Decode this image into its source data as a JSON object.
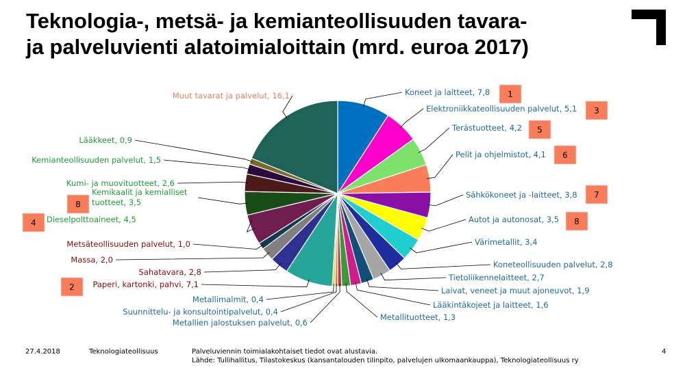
{
  "title_line1": "Teknologia-, metsä- ja kemianteollisuuden tavara-",
  "title_line2": "ja palveluvienti alatoimialoittain (mrd. euroa 2017)",
  "footer": {
    "date": "27.4.2018",
    "org": "Teknologiateollisuus",
    "note": "Palveluviennin toimialakohtaiset tiedot ovat alustavia.",
    "source": "Lähde: Tullihallitus, Tilastokeskus (kansantalouden tilinpito, palvelujen ulkomaankauppa), Teknologiateollisuus ry",
    "page_number": "4"
  },
  "chart_data": {
    "type": "pie",
    "title": "Teknologia-, metsä- ja kemianteollisuuden tavara- ja palveluvienti alatoimialoittain (mrd. euroa 2017)",
    "slices": [
      {
        "label": "Koneet ja laitteet",
        "display": "Koneet ja laitteet, 7,8",
        "value": 7.8,
        "color": "#0070C0",
        "label_color": "#1F6A9A",
        "rank": "1"
      },
      {
        "label": "Elektroniikkateollisuuden palvelut",
        "display": "Elektroniikkateollisuuden palvelut, 5,1",
        "value": 5.1,
        "color": "#FF00CC",
        "label_color": "#1F6A9A",
        "rank": "3"
      },
      {
        "label": "Terästuotteet",
        "display": "Terästuotteet, 4,2",
        "value": 4.2,
        "color": "#7CE26B",
        "label_color": "#1F6A9A",
        "rank": "5"
      },
      {
        "label": "Pelit ja ohjelmistot",
        "display": "Pelit ja ohjelmistot, 4,1",
        "value": 4.1,
        "color": "#FA7D5A",
        "label_color": "#1F6A9A",
        "rank": "6"
      },
      {
        "label": "Sähkökoneet ja -laitteet",
        "display": "Sähkökoneet ja -laitteet, 3,8",
        "value": 3.8,
        "color": "#8A0FA6",
        "label_color": "#1F6A9A",
        "rank": "7"
      },
      {
        "label": "Autot ja autonosat",
        "display": "Autot ja autonosat, 3,5",
        "value": 3.5,
        "color": "#FFFF00",
        "label_color": "#1F6A9A",
        "rank": "8"
      },
      {
        "label": "Värimetallit",
        "display": "Värimetallit, 3,4",
        "value": 3.4,
        "color": "#1FCFCF",
        "label_color": "#1F6A9A",
        "rank": ""
      },
      {
        "label": "Koneteollisuuden palvelut",
        "display": "Koneteollisuuden palvelut, 2,8",
        "value": 2.8,
        "color": "#1F2D9E",
        "label_color": "#1F6A9A",
        "rank": ""
      },
      {
        "label": "Tietoliikennelaitteet",
        "display": "Tietoliikennelaitteet, 2,7",
        "value": 2.7,
        "color": "#A6A6A6",
        "label_color": "#1F6A9A",
        "rank": ""
      },
      {
        "label": "Laivat, veneet ja muut ajoneuvot",
        "display": "Laivat, veneet ja muut ajoneuvot, 1,9",
        "value": 1.9,
        "color": "#0F4F7A",
        "label_color": "#1F6A9A",
        "rank": ""
      },
      {
        "label": "Lääkintäkojeet ja laitteet",
        "display": "Lääkintäkojeet ja laitteet, 1,6",
        "value": 1.6,
        "color": "#D11A8C",
        "label_color": "#1F6A9A",
        "rank": ""
      },
      {
        "label": "Metallituotteet",
        "display": "Metallituotteet, 1,3",
        "value": 1.3,
        "color": "#3A9A3A",
        "label_color": "#1F6A9A",
        "rank": ""
      },
      {
        "label": "Metallien jalostuksen palvelut",
        "display": "Metallien jalostuksen palvelut, 0,6",
        "value": 0.6,
        "color": "#B03A5B",
        "label_color": "#1F6A9A",
        "rank": ""
      },
      {
        "label": "Suunnittelu- ja konsultointipalvelut",
        "display": "Suunnittelu- ja konsultointipalvelut, 0,4",
        "value": 0.4,
        "color": "#E07A2F",
        "label_color": "#1F6A9A",
        "rank": ""
      },
      {
        "label": "Metallimalmit",
        "display": "Metallimalmit, 0,4",
        "value": 0.4,
        "color": "#E8D84A",
        "label_color": "#1F6A9A",
        "rank": ""
      },
      {
        "label": "Paperi, kartonki, pahvi",
        "display": "Paperi, kartonki, pahvi, 7,1",
        "value": 7.1,
        "color": "#26A69A",
        "label_color": "#8B0A0A",
        "rank": "2"
      },
      {
        "label": "Sahatavara",
        "display": "Sahatavara, 2,8",
        "value": 2.8,
        "color": "#2E3192",
        "label_color": "#8B0A0A",
        "rank": ""
      },
      {
        "label": "Massa",
        "display": "Massa, 2,0",
        "value": 2.0,
        "color": "#808080",
        "label_color": "#8B0A0A",
        "rank": ""
      },
      {
        "label": "Metsäteollisuuden palvelut",
        "display": "Metsäteollisuuden palvelut, 1,0",
        "value": 1.0,
        "color": "#0F3A4F",
        "label_color": "#8B0A0A",
        "rank": ""
      },
      {
        "label": "Dieselpolttoaineet",
        "display": "Dieselpolttoaineet, 4,5",
        "value": 4.5,
        "color": "#701E4F",
        "label_color": "#1E9C3A",
        "rank": "4"
      },
      {
        "label": "Kemikaalit ja kemialliset tuotteet",
        "display": "Kemikaalit ja kemialliset tuotteet, 3,5",
        "value": 3.5,
        "color": "#184D18",
        "label_color": "#1E9C3A",
        "rank": "8"
      },
      {
        "label": "Kumi- ja muovituotteet",
        "display": "Kumi- ja muovituotteet, 2,6",
        "value": 2.6,
        "color": "#4D1A1A",
        "label_color": "#1E9C3A",
        "rank": ""
      },
      {
        "label": "Kemianteollisuuden palvelut",
        "display": "Kemianteollisuuden palvelut, 1,5",
        "value": 1.5,
        "color": "#2B0A3D",
        "label_color": "#1E9C3A",
        "rank": ""
      },
      {
        "label": "Lääkkeet",
        "display": "Lääkkeet, 0,9",
        "value": 0.9,
        "color": "#7A6A2A",
        "label_color": "#1E9C3A",
        "rank": ""
      },
      {
        "label": "Muut tavarat ja palvelut",
        "display": "Muut tavarat ja palvelut, 16,1",
        "value": 16.1,
        "color": "#1F6358",
        "label_color": "#E8825F",
        "rank": ""
      }
    ],
    "rank_box_color": "#FA7D5A",
    "legend": "none"
  }
}
